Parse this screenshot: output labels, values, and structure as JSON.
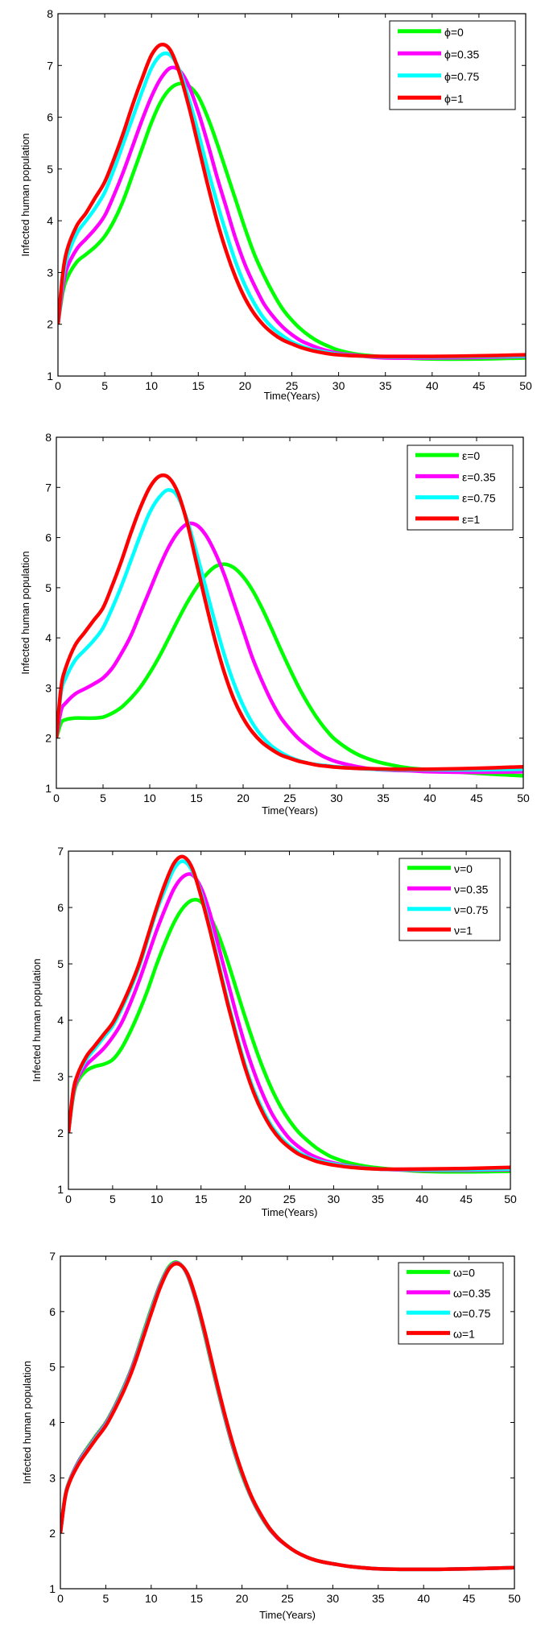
{
  "chart_data": [
    {
      "type": "line",
      "title": "",
      "xlabel": "Time(Years)",
      "ylabel": "Infected human population",
      "xlim": [
        0,
        50
      ],
      "ylim": [
        1,
        8
      ],
      "xticks": [
        0,
        5,
        10,
        15,
        20,
        25,
        30,
        35,
        40,
        45,
        50
      ],
      "yticks": [
        1,
        2,
        3,
        4,
        5,
        6,
        7,
        8
      ],
      "grid": false,
      "legend_position": "top-right",
      "x": [
        0,
        0.5,
        1,
        2,
        3,
        4,
        5,
        6,
        7,
        8,
        9,
        10,
        11,
        12,
        13,
        14,
        15,
        16,
        17,
        18,
        19,
        20,
        21,
        22,
        23,
        24,
        25,
        26,
        27,
        28,
        29,
        30,
        32,
        35,
        40,
        45,
        50
      ],
      "series": [
        {
          "name": "ϕ=0",
          "color": "#00ff00",
          "values": [
            2.0,
            2.6,
            2.9,
            3.2,
            3.35,
            3.5,
            3.7,
            4.0,
            4.4,
            4.9,
            5.4,
            5.9,
            6.3,
            6.55,
            6.65,
            6.6,
            6.4,
            6.0,
            5.5,
            4.95,
            4.4,
            3.85,
            3.35,
            2.95,
            2.6,
            2.3,
            2.08,
            1.9,
            1.76,
            1.65,
            1.57,
            1.5,
            1.42,
            1.37,
            1.33,
            1.33,
            1.35
          ]
        },
        {
          "name": "ϕ=0.35",
          "color": "#ff00ff",
          "values": [
            2.0,
            2.7,
            3.1,
            3.45,
            3.65,
            3.85,
            4.1,
            4.5,
            4.95,
            5.45,
            5.95,
            6.4,
            6.75,
            6.95,
            6.9,
            6.6,
            6.1,
            5.5,
            4.85,
            4.25,
            3.65,
            3.15,
            2.75,
            2.4,
            2.15,
            1.95,
            1.8,
            1.68,
            1.6,
            1.53,
            1.48,
            1.44,
            1.4,
            1.35,
            1.35,
            1.36,
            1.38
          ]
        },
        {
          "name": "ϕ=0.75",
          "color": "#00ffff",
          "values": [
            2.0,
            2.85,
            3.3,
            3.75,
            4.0,
            4.25,
            4.55,
            5.0,
            5.5,
            6.0,
            6.5,
            6.95,
            7.2,
            7.2,
            6.9,
            6.35,
            5.7,
            5.0,
            4.35,
            3.75,
            3.2,
            2.75,
            2.4,
            2.12,
            1.92,
            1.78,
            1.66,
            1.58,
            1.52,
            1.48,
            1.45,
            1.42,
            1.39,
            1.37,
            1.37,
            1.38,
            1.39
          ]
        },
        {
          "name": "ϕ=1",
          "color": "#ff0000",
          "values": [
            2.0,
            2.95,
            3.45,
            3.9,
            4.15,
            4.45,
            4.75,
            5.2,
            5.7,
            6.25,
            6.75,
            7.2,
            7.4,
            7.3,
            6.85,
            6.2,
            5.45,
            4.7,
            4.0,
            3.4,
            2.9,
            2.5,
            2.2,
            1.98,
            1.82,
            1.7,
            1.62,
            1.55,
            1.5,
            1.46,
            1.43,
            1.41,
            1.39,
            1.38,
            1.38,
            1.39,
            1.41
          ]
        }
      ]
    },
    {
      "type": "line",
      "title": "",
      "xlabel": "Time(Years)",
      "ylabel": "Infected human population",
      "xlim": [
        0,
        50
      ],
      "ylim": [
        1,
        8
      ],
      "xticks": [
        0,
        5,
        10,
        15,
        20,
        25,
        30,
        35,
        40,
        45,
        50
      ],
      "yticks": [
        1,
        2,
        3,
        4,
        5,
        6,
        7,
        8
      ],
      "grid": false,
      "legend_position": "top-right",
      "x": [
        0,
        0.5,
        1,
        2,
        3,
        4,
        5,
        6,
        7,
        8,
        9,
        10,
        11,
        12,
        13,
        14,
        15,
        16,
        17,
        18,
        19,
        20,
        21,
        22,
        23,
        24,
        25,
        26,
        27,
        28,
        29,
        30,
        32,
        34,
        36,
        38,
        40,
        45,
        50
      ],
      "series": [
        {
          "name": "ε=0",
          "color": "#00ff00",
          "values": [
            2.0,
            2.3,
            2.37,
            2.4,
            2.4,
            2.4,
            2.42,
            2.5,
            2.62,
            2.8,
            3.02,
            3.3,
            3.62,
            3.98,
            4.35,
            4.7,
            5.0,
            5.25,
            5.42,
            5.47,
            5.4,
            5.22,
            4.95,
            4.6,
            4.2,
            3.78,
            3.38,
            3.0,
            2.67,
            2.38,
            2.14,
            1.95,
            1.7,
            1.55,
            1.46,
            1.4,
            1.37,
            1.3,
            1.25
          ]
        },
        {
          "name": "ε=0.35",
          "color": "#ff00ff",
          "values": [
            2.0,
            2.55,
            2.7,
            2.88,
            2.98,
            3.08,
            3.2,
            3.4,
            3.7,
            4.05,
            4.5,
            4.95,
            5.4,
            5.8,
            6.1,
            6.27,
            6.25,
            6.05,
            5.7,
            5.25,
            4.7,
            4.15,
            3.6,
            3.15,
            2.75,
            2.42,
            2.18,
            1.98,
            1.83,
            1.7,
            1.6,
            1.53,
            1.44,
            1.38,
            1.36,
            1.35,
            1.33,
            1.32,
            1.33
          ]
        },
        {
          "name": "ε=0.75",
          "color": "#00ffff",
          "values": [
            2.0,
            2.9,
            3.2,
            3.55,
            3.75,
            3.95,
            4.2,
            4.6,
            5.05,
            5.55,
            6.05,
            6.5,
            6.8,
            6.95,
            6.82,
            6.35,
            5.7,
            5.0,
            4.3,
            3.65,
            3.1,
            2.65,
            2.3,
            2.04,
            1.85,
            1.72,
            1.62,
            1.55,
            1.5,
            1.47,
            1.45,
            1.43,
            1.4,
            1.38,
            1.37,
            1.37,
            1.37,
            1.37,
            1.38
          ]
        },
        {
          "name": "ε=1",
          "color": "#ff0000",
          "values": [
            2.0,
            3.0,
            3.4,
            3.85,
            4.1,
            4.35,
            4.6,
            5.05,
            5.55,
            6.1,
            6.6,
            7.0,
            7.22,
            7.2,
            6.9,
            6.3,
            5.5,
            4.7,
            3.95,
            3.3,
            2.78,
            2.4,
            2.12,
            1.92,
            1.78,
            1.67,
            1.6,
            1.54,
            1.5,
            1.46,
            1.44,
            1.42,
            1.4,
            1.39,
            1.38,
            1.38,
            1.38,
            1.4,
            1.43
          ]
        }
      ]
    },
    {
      "type": "line",
      "title": "",
      "xlabel": "Time(Years)",
      "ylabel": "Infected human population",
      "xlim": [
        0,
        50
      ],
      "ylim": [
        1,
        7
      ],
      "xticks": [
        0,
        5,
        10,
        15,
        20,
        25,
        30,
        35,
        40,
        45,
        50
      ],
      "yticks": [
        1,
        2,
        3,
        4,
        5,
        6,
        7
      ],
      "grid": false,
      "legend_position": "top-right",
      "x": [
        0,
        0.5,
        1,
        2,
        3,
        4,
        5,
        6,
        7,
        8,
        9,
        10,
        11,
        12,
        13,
        14,
        15,
        16,
        17,
        18,
        19,
        20,
        21,
        22,
        23,
        24,
        25,
        26,
        27,
        28,
        29,
        30,
        32,
        35,
        40,
        45,
        50
      ],
      "series": [
        {
          "name": "ν=0",
          "color": "#00ff00",
          "values": [
            2.0,
            2.6,
            2.9,
            3.1,
            3.18,
            3.22,
            3.3,
            3.5,
            3.8,
            4.15,
            4.55,
            5.0,
            5.4,
            5.75,
            6.0,
            6.13,
            6.1,
            5.85,
            5.5,
            5.05,
            4.55,
            4.05,
            3.58,
            3.15,
            2.78,
            2.47,
            2.22,
            2.02,
            1.87,
            1.74,
            1.64,
            1.56,
            1.46,
            1.38,
            1.32,
            1.31,
            1.32
          ]
        },
        {
          "name": "ν=0.35",
          "color": "#ff00ff",
          "values": [
            2.0,
            2.65,
            2.95,
            3.2,
            3.35,
            3.5,
            3.7,
            3.95,
            4.3,
            4.7,
            5.15,
            5.6,
            6.0,
            6.35,
            6.55,
            6.58,
            6.35,
            5.9,
            5.3,
            4.7,
            4.1,
            3.55,
            3.08,
            2.68,
            2.35,
            2.1,
            1.9,
            1.76,
            1.65,
            1.57,
            1.51,
            1.47,
            1.41,
            1.36,
            1.34,
            1.34,
            1.35
          ]
        },
        {
          "name": "ν=0.75",
          "color": "#00ffff",
          "values": [
            2.0,
            2.7,
            3.0,
            3.3,
            3.5,
            3.7,
            3.9,
            4.2,
            4.55,
            4.95,
            5.45,
            5.95,
            6.35,
            6.7,
            6.82,
            6.65,
            6.25,
            5.65,
            5.0,
            4.35,
            3.75,
            3.2,
            2.75,
            2.4,
            2.12,
            1.92,
            1.77,
            1.66,
            1.58,
            1.52,
            1.48,
            1.45,
            1.4,
            1.36,
            1.35,
            1.35,
            1.36
          ]
        },
        {
          "name": "ν=1",
          "color": "#ff0000",
          "values": [
            2.0,
            2.7,
            3.02,
            3.35,
            3.55,
            3.75,
            3.95,
            4.25,
            4.6,
            5.0,
            5.5,
            6.0,
            6.45,
            6.8,
            6.9,
            6.7,
            6.2,
            5.6,
            4.95,
            4.3,
            3.7,
            3.15,
            2.7,
            2.35,
            2.08,
            1.88,
            1.74,
            1.63,
            1.56,
            1.5,
            1.46,
            1.43,
            1.39,
            1.36,
            1.36,
            1.37,
            1.39
          ]
        }
      ]
    },
    {
      "type": "line",
      "title": "",
      "xlabel": "Time(Years)",
      "ylabel": "Infected human population",
      "xlim": [
        0,
        50
      ],
      "ylim": [
        1,
        7
      ],
      "xticks": [
        0,
        5,
        10,
        15,
        20,
        25,
        30,
        35,
        40,
        45,
        50
      ],
      "yticks": [
        1,
        2,
        3,
        4,
        5,
        6,
        7
      ],
      "grid": false,
      "legend_position": "top-right",
      "x": [
        0,
        0.5,
        1,
        2,
        3,
        4,
        5,
        6,
        7,
        8,
        9,
        10,
        11,
        12,
        13,
        14,
        15,
        16,
        17,
        18,
        19,
        20,
        21,
        22,
        23,
        24,
        25,
        26,
        27,
        28,
        29,
        30,
        32,
        35,
        40,
        45,
        50
      ],
      "series": [
        {
          "name": "ω=0",
          "color": "#00ff00",
          "values": [
            2.0,
            2.65,
            2.95,
            3.3,
            3.55,
            3.78,
            4.0,
            4.3,
            4.65,
            5.05,
            5.55,
            6.05,
            6.5,
            6.82,
            6.88,
            6.65,
            6.15,
            5.5,
            4.8,
            4.15,
            3.55,
            3.05,
            2.65,
            2.33,
            2.08,
            1.9,
            1.77,
            1.66,
            1.58,
            1.52,
            1.48,
            1.45,
            1.4,
            1.36,
            1.35,
            1.36,
            1.38
          ]
        },
        {
          "name": "ω=0.35",
          "color": "#ff00ff",
          "values": [
            2.0,
            2.64,
            2.94,
            3.29,
            3.53,
            3.76,
            3.98,
            4.28,
            4.63,
            5.03,
            5.52,
            6.02,
            6.48,
            6.8,
            6.87,
            6.66,
            6.17,
            5.53,
            4.83,
            4.17,
            3.57,
            3.07,
            2.66,
            2.34,
            2.09,
            1.9,
            1.77,
            1.66,
            1.58,
            1.52,
            1.48,
            1.45,
            1.4,
            1.36,
            1.35,
            1.36,
            1.38
          ]
        },
        {
          "name": "ω=0.75",
          "color": "#00ffff",
          "values": [
            2.0,
            2.63,
            2.93,
            3.27,
            3.51,
            3.74,
            3.96,
            4.26,
            4.61,
            5.0,
            5.5,
            6.0,
            6.46,
            6.79,
            6.86,
            6.67,
            6.19,
            5.55,
            4.85,
            4.19,
            3.59,
            3.08,
            2.67,
            2.35,
            2.1,
            1.91,
            1.77,
            1.66,
            1.58,
            1.52,
            1.48,
            1.45,
            1.4,
            1.36,
            1.35,
            1.36,
            1.38
          ]
        },
        {
          "name": "ω=1",
          "color": "#ff0000",
          "values": [
            2.0,
            2.62,
            2.92,
            3.25,
            3.49,
            3.72,
            3.94,
            4.24,
            4.58,
            4.98,
            5.47,
            5.97,
            6.44,
            6.78,
            6.86,
            6.68,
            6.2,
            5.57,
            4.87,
            4.21,
            3.61,
            3.1,
            2.68,
            2.36,
            2.1,
            1.91,
            1.77,
            1.66,
            1.58,
            1.52,
            1.48,
            1.45,
            1.4,
            1.36,
            1.35,
            1.36,
            1.38
          ]
        }
      ]
    }
  ]
}
